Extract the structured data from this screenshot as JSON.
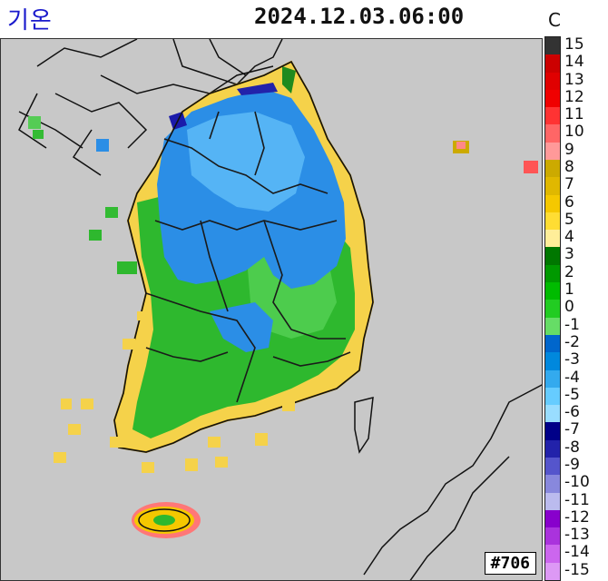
{
  "header": {
    "title": "기온",
    "datetime": "2024.12.03.06:00",
    "unit": "C"
  },
  "map": {
    "station_id": "#706"
  },
  "legend": {
    "entries": [
      {
        "label": "15",
        "color": "#333333"
      },
      {
        "label": "14",
        "color": "#cc0000"
      },
      {
        "label": "13",
        "color": "#e00000"
      },
      {
        "label": "12",
        "color": "#f00000"
      },
      {
        "label": "11",
        "color": "#ff3333"
      },
      {
        "label": "10",
        "color": "#ff6666"
      },
      {
        "label": "9",
        "color": "#ff9999"
      },
      {
        "label": "8",
        "color": "#ccaa00"
      },
      {
        "label": "7",
        "color": "#e0b800"
      },
      {
        "label": "6",
        "color": "#f5c800"
      },
      {
        "label": "5",
        "color": "#ffdd33"
      },
      {
        "label": "4",
        "color": "#ffee99"
      },
      {
        "label": "3",
        "color": "#007700"
      },
      {
        "label": "2",
        "color": "#009900"
      },
      {
        "label": "1",
        "color": "#00bb00"
      },
      {
        "label": "0",
        "color": "#22cc22"
      },
      {
        "label": "-1",
        "color": "#66dd66"
      },
      {
        "label": "-2",
        "color": "#0066cc"
      },
      {
        "label": "-3",
        "color": "#0088dd"
      },
      {
        "label": "-4",
        "color": "#33aaee"
      },
      {
        "label": "-5",
        "color": "#66ccff"
      },
      {
        "label": "-6",
        "color": "#99ddff"
      },
      {
        "label": "-7",
        "color": "#000088"
      },
      {
        "label": "-8",
        "color": "#2222aa"
      },
      {
        "label": "-9",
        "color": "#5555cc"
      },
      {
        "label": "-10",
        "color": "#8888dd"
      },
      {
        "label": "-11",
        "color": "#bbbbee"
      },
      {
        "label": "-12",
        "color": "#8800cc"
      },
      {
        "label": "-13",
        "color": "#aa33dd"
      },
      {
        "label": "-14",
        "color": "#cc66ee"
      },
      {
        "label": "-15",
        "color": "#dd99f5"
      }
    ]
  }
}
